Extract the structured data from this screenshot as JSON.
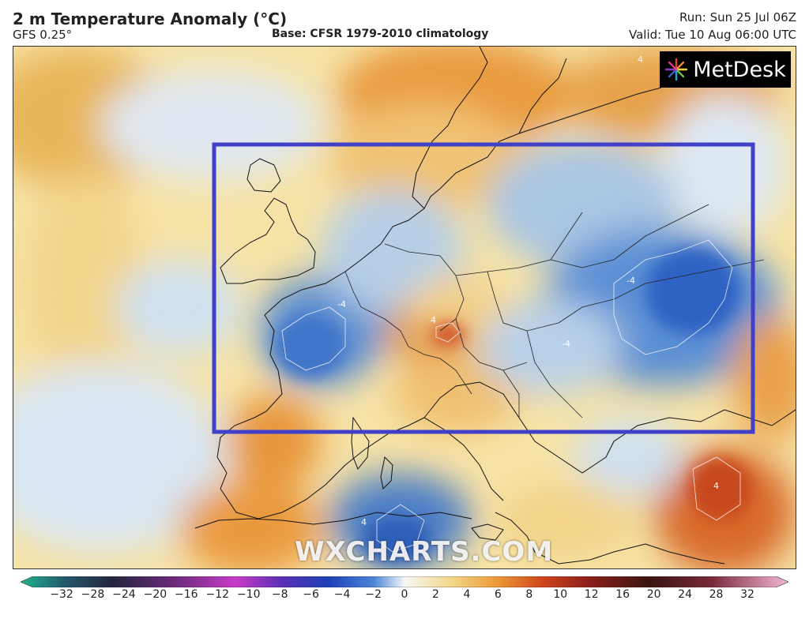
{
  "header": {
    "title": "2 m Temperature Anomaly (°C)",
    "model": "GFS 0.25°",
    "base": "Base: CFSR 1979-2010 climatology",
    "run": "Run: Sun 25 Jul 06Z",
    "valid": "Valid: Tue 10 Aug 06:00 UTC"
  },
  "logo": {
    "text": "MetDesk",
    "icon": "metdesk-burst-icon"
  },
  "watermark": "WXCHARTS.COM",
  "map": {
    "highlight_color": "#4040c8",
    "contour_label": "4",
    "contour_label_neg": "-4"
  },
  "legend": {
    "ticks": [
      "−32",
      "−28",
      "−24",
      "−20",
      "−16",
      "−12",
      "−10",
      "−8",
      "−6",
      "−4",
      "−2",
      "0",
      "2",
      "4",
      "6",
      "8",
      "10",
      "12",
      "16",
      "20",
      "24",
      "28",
      "32"
    ]
  }
}
